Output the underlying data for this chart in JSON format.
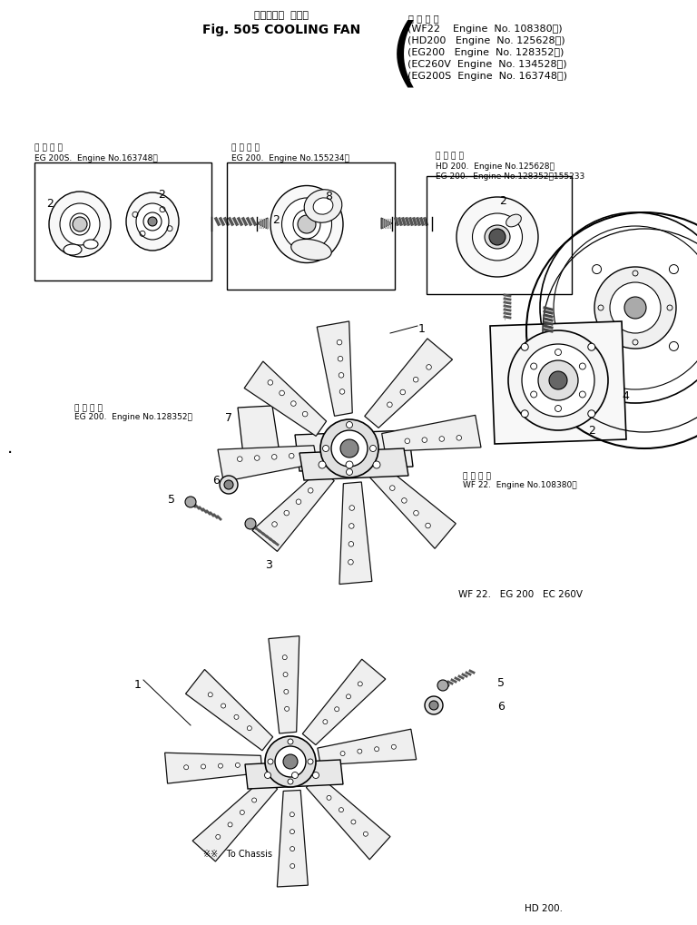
{
  "title_japanese": "クーリング  ファン",
  "title_english": "Fig. 505 COOLING FAN",
  "applicable_label": "適 用 号 機",
  "engine_lines": [
    "(WF22    Engine  No. 108380～)",
    "(HD200   Engine  No. 125628～)",
    "(EG200   Engine  No. 128352～)",
    "(EC260V  Engine  No. 134528～)",
    "(EG200S  Engine  No. 163748～)"
  ],
  "box1_note1": "適 用 号 機",
  "box1_note2": "EG 200S.  Engine No.163748～",
  "box2_note1": "適 用 号 機",
  "box2_note2": "EG 200.  Engine No.155234～",
  "box3_note1": "適 用 号 機",
  "box3_note2": "HD 200.  Engine No.125628～",
  "box3_note3": "EG 200.  Engine No.128352～155233",
  "upper_note1": "適 用 号 機",
  "upper_note2": "EG 200.  Engine No.128352～",
  "upper_note3": "適 用 号 機",
  "upper_note4": "WF 22.  Engine No.108380～",
  "label_wf22": "WF 22.   EG 200   EC 260V",
  "lower_note": "※※   To Chassis",
  "label_hd200": "HD 200.",
  "bg_color": "#ffffff"
}
